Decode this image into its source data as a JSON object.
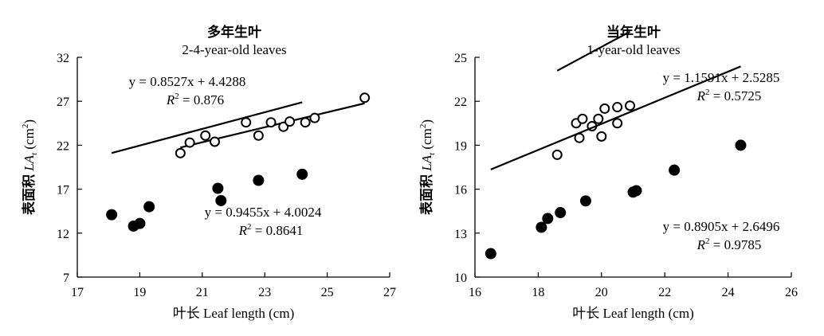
{
  "chart_data": [
    {
      "type": "scatter",
      "title": "多年生叶",
      "subtitle": "2-4-year-old leaves",
      "xlabel": "叶长 Leaf length (cm)",
      "ylabel_main": "表面积 ",
      "ylabel_var": "LA",
      "ylabel_sub": "t",
      "ylabel_unit": " (cm",
      "ylabel_unit_sup": "2",
      "ylabel_close": ")",
      "xlim": [
        17,
        27
      ],
      "ylim": [
        7,
        32
      ],
      "xticks": [
        "17",
        "19",
        "21",
        "23",
        "25",
        "27"
      ],
      "yticks": [
        "7",
        "12",
        "17",
        "22",
        "27",
        "32"
      ],
      "grid": false,
      "series": [
        {
          "marker": "open-circle",
          "x": [
            20.3,
            20.6,
            21.1,
            21.4,
            22.4,
            22.8,
            23.2,
            23.6,
            23.8,
            24.3,
            24.6,
            26.2
          ],
          "y": [
            21.1,
            22.3,
            23.1,
            22.4,
            24.6,
            23.1,
            24.6,
            24.1,
            24.7,
            24.6,
            25.1,
            27.4
          ],
          "fit": {
            "slope": 0.8527,
            "intercept": 4.4288,
            "x_range": [
              20.3,
              26.2
            ]
          },
          "equation": "y = 0.8527x + 4.4288",
          "r2_label": "R² = 0.876"
        },
        {
          "marker": "filled-circle",
          "x": [
            18.1,
            18.8,
            19.0,
            19.3,
            21.5,
            21.6,
            22.8,
            24.2
          ],
          "y": [
            14.1,
            12.8,
            13.1,
            15.0,
            17.1,
            15.7,
            18.0,
            18.7
          ],
          "fit": {
            "slope": 0.9455,
            "intercept": 4.0024,
            "x_range": [
              18.1,
              24.2
            ]
          },
          "equation": "y = 0.9455x + 4.0024",
          "r2_label": "R² = 0.8641"
        }
      ]
    },
    {
      "type": "scatter",
      "title": "当年生叶",
      "subtitle": "1-year-old leaves",
      "xlabel": "叶长 Leaf length (cm)",
      "ylabel_main": "表面积 ",
      "ylabel_var": "LA",
      "ylabel_sub": "t",
      "ylabel_unit": " (cm",
      "ylabel_unit_sup": "2",
      "ylabel_close": ")",
      "xlim": [
        16,
        26
      ],
      "ylim": [
        10,
        25
      ],
      "xticks": [
        "16",
        "18",
        "20",
        "22",
        "24",
        "26"
      ],
      "yticks": [
        "10",
        "13",
        "16",
        "19",
        "22",
        "25"
      ],
      "grid": false,
      "series": [
        {
          "marker": "open-circle",
          "x": [
            18.6,
            19.2,
            19.4,
            19.3,
            19.7,
            19.9,
            20.0,
            20.1,
            20.5,
            20.5,
            20.9
          ],
          "y": [
            18.35,
            20.5,
            20.8,
            19.5,
            20.3,
            20.8,
            19.6,
            21.5,
            21.6,
            20.5,
            21.7
          ],
          "fit": {
            "slope": 1.1591,
            "intercept": 2.5285,
            "x_range": [
              18.6,
              20.9
            ]
          },
          "equation": "y = 1.1591x + 2.5285",
          "r2_label": "R² = 0.5725"
        },
        {
          "marker": "filled-circle",
          "x": [
            16.5,
            18.1,
            18.3,
            18.7,
            19.5,
            21.0,
            21.1,
            22.3,
            24.4
          ],
          "y": [
            11.6,
            13.4,
            14.0,
            14.4,
            15.2,
            15.8,
            15.9,
            17.3,
            19.0
          ],
          "fit": {
            "slope": 0.8905,
            "intercept": 2.6496,
            "x_range": [
              16.5,
              24.4
            ]
          },
          "equation": "y = 0.8905x + 2.6496",
          "r2_label": "R² = 0.9785"
        }
      ]
    }
  ]
}
